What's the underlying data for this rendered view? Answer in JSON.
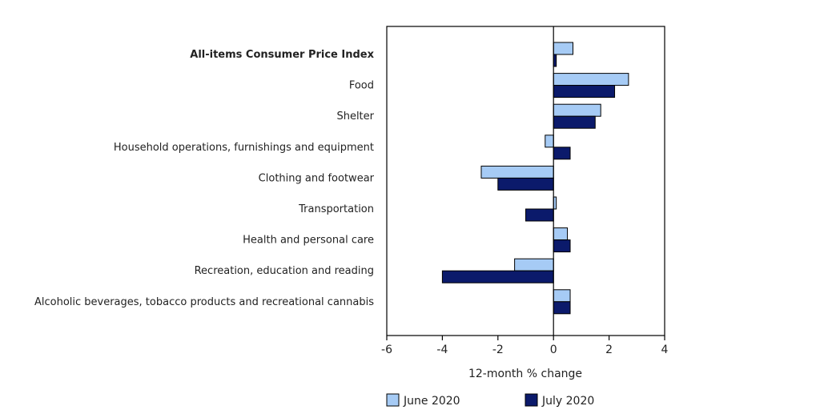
{
  "chart_data": {
    "type": "bar",
    "orientation": "horizontal",
    "categories": [
      "All-items Consumer Price Index",
      "Food",
      "Shelter",
      "Household operations, furnishings and equipment",
      "Clothing and footwear",
      "Transportation",
      "Health and personal care",
      "Recreation, education and reading",
      "Alcoholic beverages, tobacco products and recreational cannabis"
    ],
    "series": [
      {
        "name": "June 2020",
        "color": "#a6cbf5",
        "values": [
          0.7,
          2.7,
          1.7,
          -0.3,
          -2.6,
          0.1,
          0.5,
          -1.4,
          0.6
        ]
      },
      {
        "name": "July 2020",
        "color": "#0b1a6b",
        "values": [
          0.1,
          2.2,
          1.5,
          0.6,
          -2.0,
          -1.0,
          0.6,
          -4.0,
          0.6
        ]
      }
    ],
    "xlabel": "12-month % change",
    "xlim": [
      -6,
      4
    ],
    "xticks": [
      -6,
      -4,
      -2,
      0,
      2,
      4
    ],
    "grid": false,
    "legend_position": "bottom",
    "bold_categories": [
      "All-items Consumer Price Index"
    ]
  }
}
